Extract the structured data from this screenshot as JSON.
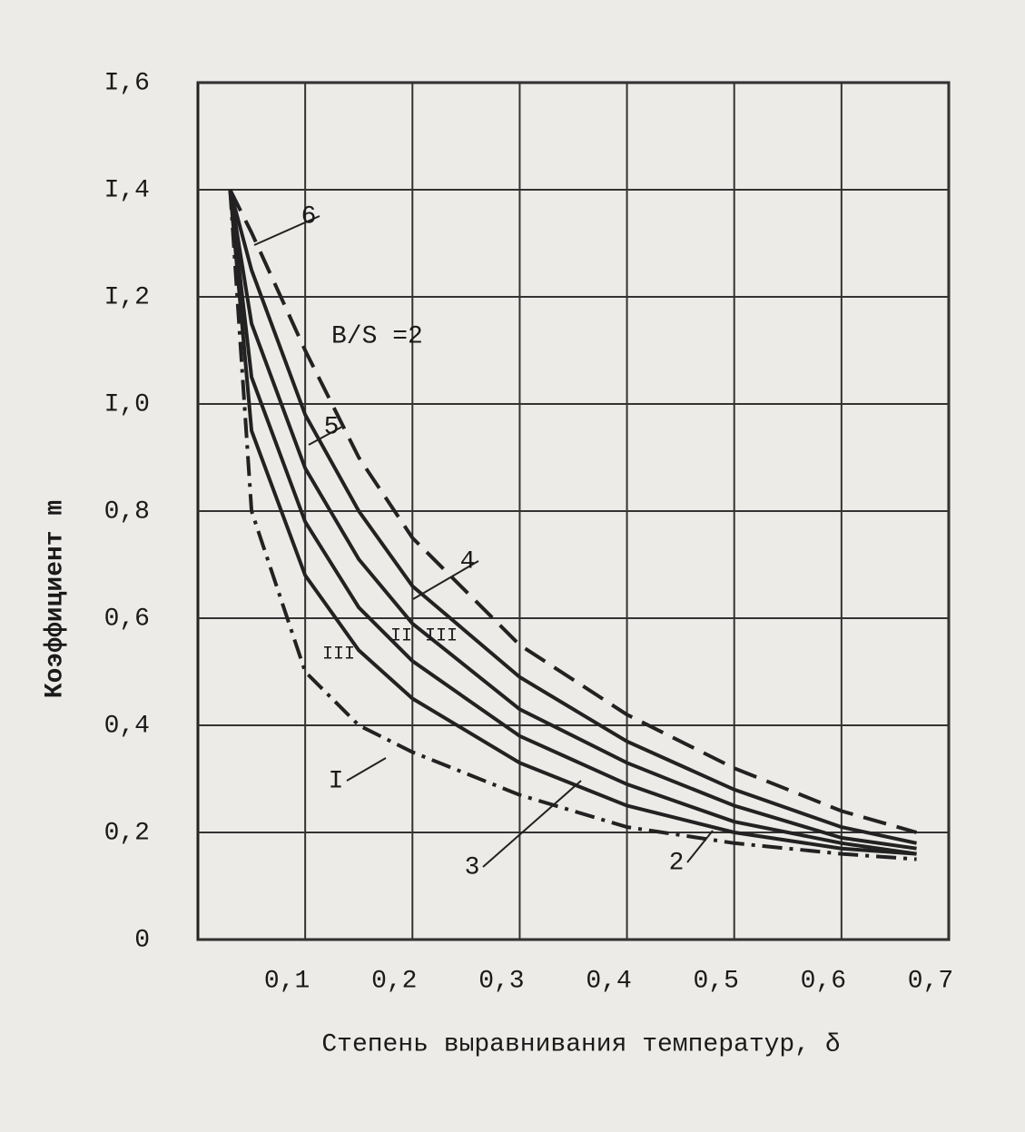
{
  "chart_data": {
    "type": "line",
    "xlabel": "Степень выравнивания температур, δ",
    "ylabel": "Коэффициент m",
    "xlim": [
      0,
      0.7
    ],
    "ylim": [
      0,
      1.6
    ],
    "xticks": [
      {
        "value": 0.1,
        "label": "0,1"
      },
      {
        "value": 0.2,
        "label": "0,2"
      },
      {
        "value": 0.3,
        "label": "0,3"
      },
      {
        "value": 0.4,
        "label": "0,4"
      },
      {
        "value": 0.5,
        "label": "0,5"
      },
      {
        "value": 0.6,
        "label": "0,6"
      },
      {
        "value": 0.7,
        "label": "0,7"
      }
    ],
    "yticks": [
      0,
      {
        "value": 0.2,
        "label": "0,2"
      },
      {
        "value": 0.4,
        "label": "0,4"
      },
      {
        "value": 0.6,
        "label": "0,6"
      },
      {
        "value": 0.8,
        "label": "0,8"
      },
      {
        "value": 1.0,
        "label": "I,0"
      },
      {
        "value": 1.2,
        "label": "I,2"
      },
      {
        "value": 1.4,
        "label": "I,4"
      },
      {
        "value": 1.6,
        "label": "I,6"
      }
    ],
    "grid": true,
    "x": [
      0.03,
      0.05,
      0.1,
      0.15,
      0.2,
      0.3,
      0.4,
      0.5,
      0.6,
      0.67
    ],
    "series": [
      {
        "name": "6",
        "color": "#222222",
        "dash": "dashed",
        "values": [
          1.4,
          1.32,
          1.1,
          0.9,
          0.75,
          0.55,
          0.42,
          0.32,
          0.24,
          0.2
        ]
      },
      {
        "name": "5",
        "color": "#222222",
        "dash": "solid",
        "values": [
          1.4,
          1.25,
          0.98,
          0.8,
          0.66,
          0.49,
          0.37,
          0.28,
          0.21,
          0.18
        ]
      },
      {
        "name": "4",
        "color": "#222222",
        "dash": "solid",
        "values": [
          1.4,
          1.15,
          0.88,
          0.71,
          0.59,
          0.43,
          0.33,
          0.25,
          0.19,
          0.17
        ]
      },
      {
        "name": "3",
        "color": "#222222",
        "dash": "solid",
        "values": [
          1.4,
          1.05,
          0.78,
          0.62,
          0.52,
          0.38,
          0.29,
          0.22,
          0.18,
          0.16
        ]
      },
      {
        "name": "2",
        "color": "#222222",
        "dash": "solid",
        "values": [
          1.4,
          0.95,
          0.68,
          0.54,
          0.45,
          0.33,
          0.25,
          0.2,
          0.17,
          0.16
        ]
      },
      {
        "name": "I",
        "color": "#222222",
        "dash": "dashdot",
        "values": [
          1.4,
          0.8,
          0.5,
          0.4,
          0.35,
          0.27,
          0.21,
          0.18,
          0.16,
          0.15
        ]
      }
    ],
    "annotations": [
      "B/S =2",
      "III",
      "II",
      "III"
    ]
  }
}
